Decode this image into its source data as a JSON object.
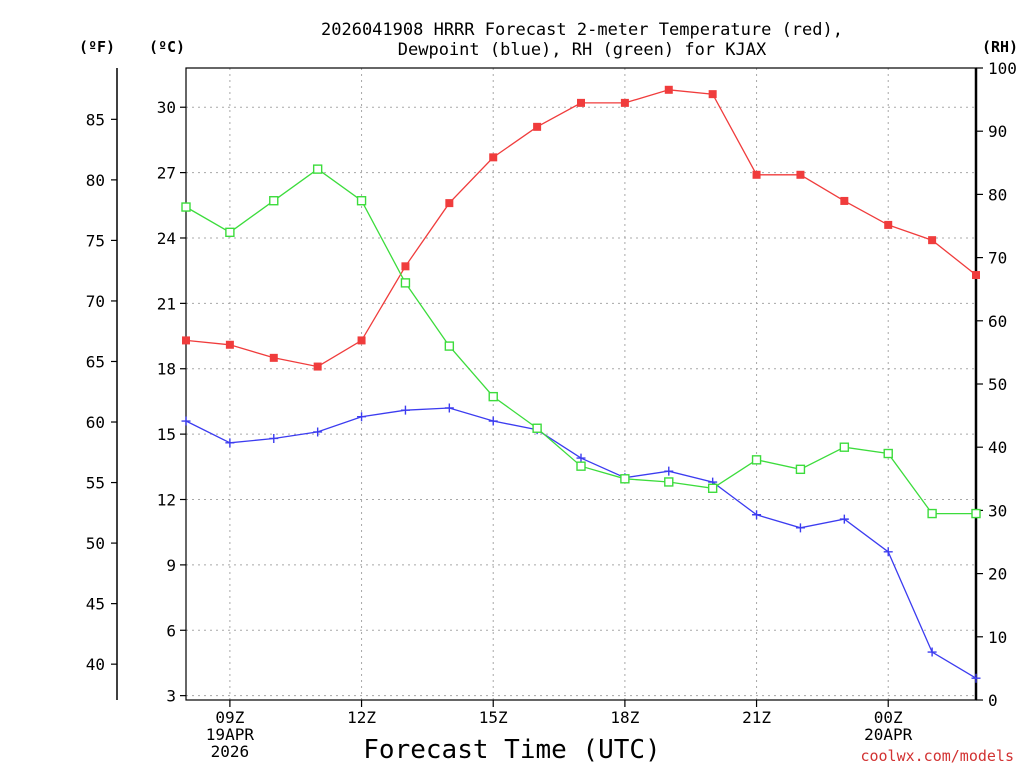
{
  "chart_data": {
    "type": "line",
    "title_lines": [
      "2026041908 HRRR Forecast 2-meter Temperature (red),",
      "Dewpoint (blue), RH (green) for KJAX"
    ],
    "xlabel": "Forecast Time (UTC)",
    "credit": "coolwx.com/models",
    "units": {
      "fahrenheit": "(ºF)",
      "celsius": "(ºC)",
      "rh": "(RH)"
    },
    "x_hours": [
      8,
      9,
      10,
      11,
      12,
      13,
      14,
      15,
      16,
      17,
      18,
      19,
      20,
      21,
      22,
      23,
      24,
      25,
      26
    ],
    "xlim": [
      8,
      26
    ],
    "x_ticks": [
      {
        "hour": 9,
        "lines": [
          "09Z",
          "19APR",
          "2026"
        ]
      },
      {
        "hour": 12,
        "lines": [
          "12Z"
        ]
      },
      {
        "hour": 15,
        "lines": [
          "15Z"
        ]
      },
      {
        "hour": 18,
        "lines": [
          "18Z"
        ]
      },
      {
        "hour": 21,
        "lines": [
          "21Z"
        ]
      },
      {
        "hour": 24,
        "lines": [
          "00Z",
          "20APR"
        ]
      }
    ],
    "celsius_axis": {
      "lim": [
        2.8,
        31.8
      ],
      "ticks": [
        3,
        6,
        9,
        12,
        15,
        18,
        21,
        24,
        27,
        30
      ]
    },
    "fahrenheit_axis": {
      "ticks": [
        40,
        45,
        50,
        55,
        60,
        65,
        70,
        75,
        80,
        85
      ]
    },
    "rh_axis": {
      "lim": [
        0,
        100
      ],
      "ticks": [
        0,
        10,
        20,
        30,
        40,
        50,
        60,
        70,
        80,
        90,
        100
      ]
    },
    "series": [
      {
        "name": "2-meter Temperature",
        "axis": "celsius",
        "color": "#f03c3c",
        "marker": "filled-square",
        "values": [
          19.3,
          19.1,
          18.5,
          18.1,
          19.3,
          22.7,
          25.6,
          27.7,
          29.1,
          30.2,
          30.2,
          30.8,
          30.6,
          26.9,
          26.9,
          25.7,
          24.6,
          23.9,
          22.3
        ]
      },
      {
        "name": "Dewpoint",
        "axis": "celsius",
        "color": "#3c3cf0",
        "marker": "plus",
        "values": [
          15.6,
          14.6,
          14.8,
          15.1,
          15.8,
          16.1,
          16.2,
          15.6,
          15.2,
          13.9,
          13.0,
          13.3,
          12.8,
          11.3,
          10.7,
          11.1,
          9.6,
          5.0,
          3.8
        ]
      },
      {
        "name": "Relative Humidity",
        "axis": "rh",
        "color": "#3cdc3c",
        "marker": "open-square",
        "values": [
          78,
          74,
          79,
          84,
          79,
          66,
          56,
          48,
          43,
          37,
          35,
          34.5,
          33.5,
          38,
          36.5,
          40,
          39,
          29.5,
          29.5
        ]
      }
    ]
  }
}
